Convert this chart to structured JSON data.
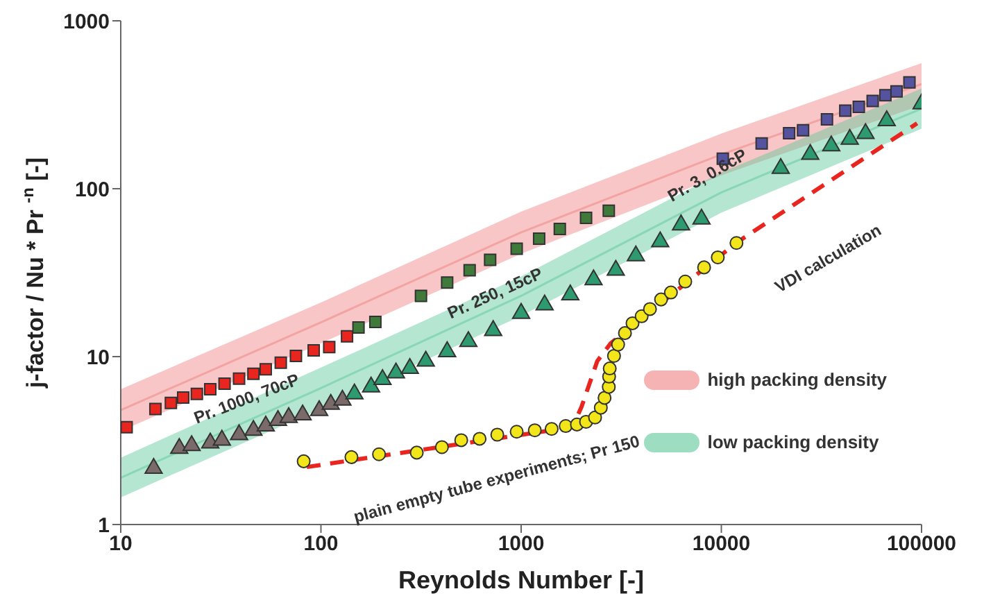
{
  "chart_data": {
    "type": "scatter",
    "xlabel": "Reynolds Number [-]",
    "ylabel": "j-factor  /  Nu * Pr $^{-n}$  [-]",
    "log": "xy",
    "xlim": [
      10,
      100000
    ],
    "xticks": [
      10,
      100,
      1000,
      10000,
      100000
    ],
    "ylim": [
      1,
      1000
    ],
    "yticks": [
      1,
      10,
      100,
      1000
    ],
    "legend": "bottom right",
    "series": [
      {
        "name": "high packing density",
        "type": "line",
        "color": "#f08080",
        "x": [
          10,
          100,
          1000,
          10000,
          100000
        ],
        "values": [
          4.8,
          16,
          55,
          160,
          420
        ],
        "lower": [
          3.6,
          12,
          41,
          120,
          315
        ],
        "upper": [
          6.4,
          21,
          73,
          213,
          560
        ]
      },
      {
        "name": "low packing density",
        "type": "line",
        "color": "#5cc89a",
        "x": [
          10,
          100,
          1000,
          10000,
          100000
        ],
        "values": [
          1.9,
          6.5,
          23,
          95,
          300
        ],
        "lower": [
          1.45,
          4.9,
          17.5,
          72,
          228
        ],
        "upper": [
          2.5,
          8.6,
          30,
          125,
          395
        ]
      },
      {
        "type": "line",
        "color": "#e8261f",
        "line_style": "dashed",
        "marker": "none",
        "x": [
          85,
          1800,
          2000,
          2400,
          2800,
          12000,
          95000
        ],
        "values": [
          2.2,
          3.8,
          5,
          9.4,
          12,
          48,
          245
        ]
      },
      {
        "marker": "square",
        "color": "#e8261f",
        "x": [
          10.7,
          14.9,
          17.8,
          20.5,
          24,
          28,
          33,
          39,
          46,
          53,
          63,
          75,
          92,
          110,
          135
        ],
        "values": [
          3.8,
          4.87,
          5.3,
          5.7,
          6,
          6.4,
          6.9,
          7.4,
          7.9,
          8.4,
          9.2,
          10.1,
          10.9,
          11.4,
          13.2
        ]
      },
      {
        "marker": "square",
        "color": "#3f7a3a",
        "x": [
          154,
          187,
          316,
          427,
          553,
          700,
          950,
          1230,
          1560,
          2110,
          2740
        ],
        "values": [
          14.9,
          16.1,
          23,
          27.6,
          32.7,
          37.7,
          43.9,
          50.4,
          57.6,
          67,
          74
        ]
      },
      {
        "marker": "square",
        "color": "#5552a0",
        "x": [
          10170,
          15900,
          21800,
          25600,
          33700,
          41600,
          48600,
          57000,
          66000,
          75000,
          87000
        ],
        "values": [
          151,
          186,
          214,
          223,
          259,
          292,
          307,
          333,
          360,
          380,
          430
        ]
      },
      {
        "marker": "triangle",
        "color": "#7a6a6a",
        "x": [
          14.6,
          19.6,
          22.6,
          28,
          32,
          39,
          46,
          53,
          61,
          69,
          81,
          98,
          112,
          128
        ],
        "values": [
          2.16,
          2.84,
          2.95,
          3.06,
          3.18,
          3.43,
          3.64,
          3.86,
          4.17,
          4.34,
          4.5,
          4.77,
          5.2,
          5.5
        ]
      },
      {
        "marker": "triangle",
        "color": "#2e9a70",
        "x": [
          147,
          178,
          203,
          237,
          278,
          334,
          427,
          545,
          725,
          1000,
          1310,
          1760,
          2300,
          2970,
          3740,
          4950,
          6290,
          7960,
          19800,
          27800,
          35400,
          43800,
          52500,
          67000,
          100000
        ],
        "values": [
          6,
          6.6,
          7.3,
          8,
          8.5,
          9.4,
          10.7,
          12.3,
          14.3,
          18.1,
          20.3,
          23.3,
          28.7,
          32.7,
          39.8,
          48.3,
          60.9,
          66,
          132,
          160,
          180,
          197,
          213,
          254,
          320
        ]
      },
      {
        "marker": "circle",
        "color": "#f2e61a",
        "x": [
          82,
          142,
          195,
          301,
          402,
          502,
          620,
          760,
          950,
          1170,
          1420,
          1670,
          1900,
          2110,
          2340,
          2500,
          2610,
          2740,
          2750,
          2770,
          2910,
          3050,
          3300,
          3600,
          4000,
          4400,
          5000,
          5600,
          6600,
          8200,
          9600,
          11900
        ],
        "values": [
          2.38,
          2.52,
          2.62,
          2.68,
          2.89,
          3.18,
          3.24,
          3.43,
          3.57,
          3.64,
          3.71,
          3.86,
          3.94,
          4.09,
          4.34,
          4.96,
          5.68,
          6.6,
          7.6,
          8.5,
          10.1,
          11.8,
          13.8,
          15.8,
          17.4,
          19.2,
          21.9,
          24.1,
          28,
          34,
          39,
          47.5
        ]
      }
    ],
    "annotations": [
      "Pr. 1000, 70cP",
      "Pr. 250, 15cP",
      "Pr. 3, 0.6cP",
      "VDI calculation",
      "plain empty tube experiments;  Pr 150"
    ]
  }
}
